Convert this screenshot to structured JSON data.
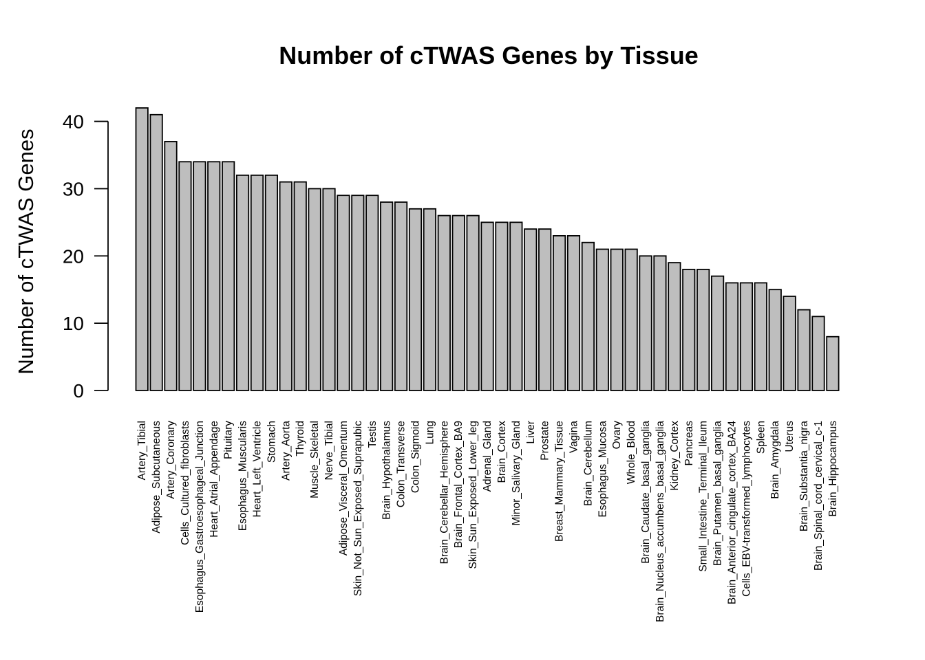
{
  "chart_data": {
    "type": "bar",
    "title": "Number of cTWAS Genes by Tissue",
    "xlabel": "",
    "ylabel": "Number of cTWAS Genes",
    "ylim": [
      0,
      42
    ],
    "yticks": [
      0,
      10,
      20,
      30,
      40
    ],
    "grid": false,
    "legend": "none",
    "bar_color": "#bebebe",
    "categories": [
      "Artery_Tibial",
      "Adipose_Subcutaneous",
      "Artery_Coronary",
      "Cells_Cultured_fibroblasts",
      "Esophagus_Gastroesophageal_Junction",
      "Heart_Atrial_Appendage",
      "Pituitary",
      "Esophagus_Muscularis",
      "Heart_Left_Ventricle",
      "Stomach",
      "Artery_Aorta",
      "Thyroid",
      "Muscle_Skeletal",
      "Nerve_Tibial",
      "Adipose_Visceral_Omentum",
      "Skin_Not_Sun_Exposed_Suprapubic",
      "Testis",
      "Brain_Hypothalamus",
      "Colon_Transverse",
      "Colon_Sigmoid",
      "Lung",
      "Brain_Cerebellar_Hemisphere",
      "Brain_Frontal_Cortex_BA9",
      "Skin_Sun_Exposed_Lower_leg",
      "Adrenal_Gland",
      "Brain_Cortex",
      "Minor_Salivary_Gland",
      "Liver",
      "Prostate",
      "Breast_Mammary_Tissue",
      "Vagina",
      "Brain_Cerebellum",
      "Esophagus_Mucosa",
      "Ovary",
      "Whole_Blood",
      "Brain_Caudate_basal_ganglia",
      "Brain_Nucleus_accumbens_basal_ganglia",
      "Kidney_Cortex",
      "Pancreas",
      "Small_Intestine_Terminal_Ileum",
      "Brain_Putamen_basal_ganglia",
      "Brain_Anterior_cingulate_cortex_BA24",
      "Cells_EBV-transformed_lymphocytes",
      "Spleen",
      "Brain_Amygdala",
      "Uterus",
      "Brain_Substantia_nigra",
      "Brain_Spinal_cord_cervical_c-1",
      "Brain_Hippocampus"
    ],
    "values": [
      42,
      41,
      37,
      34,
      34,
      34,
      34,
      32,
      32,
      32,
      31,
      31,
      30,
      30,
      29,
      29,
      29,
      28,
      28,
      27,
      27,
      26,
      26,
      26,
      25,
      25,
      25,
      24,
      24,
      23,
      23,
      22,
      21,
      21,
      21,
      20,
      20,
      19,
      18,
      18,
      17,
      16,
      16,
      16,
      15,
      14,
      12,
      11,
      8
    ]
  }
}
